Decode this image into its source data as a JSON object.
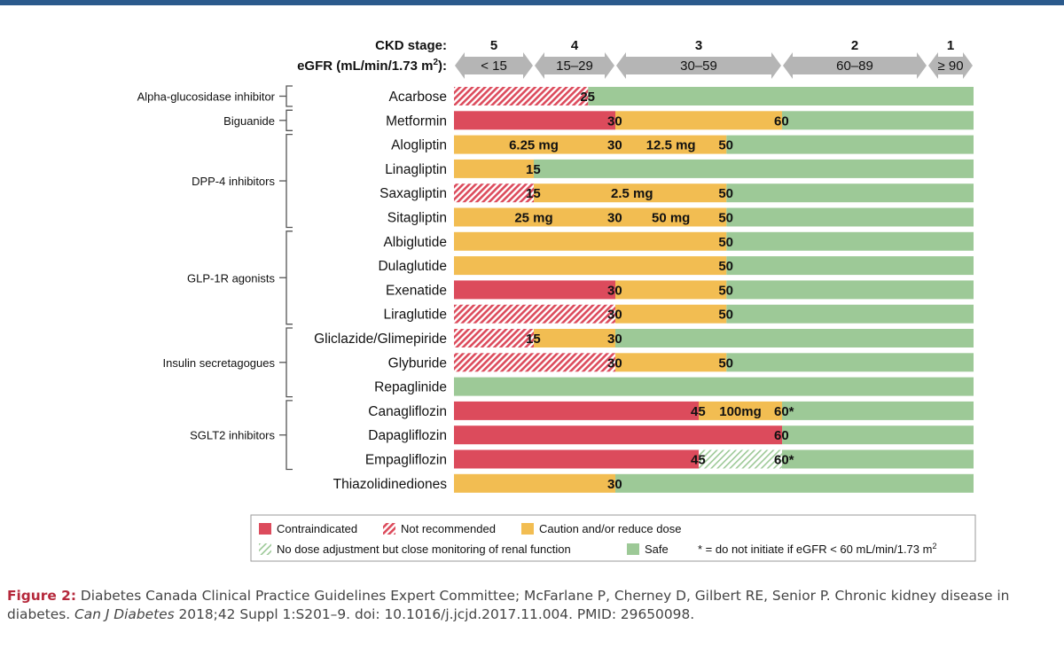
{
  "header": {
    "ckd_label": "CKD stage:",
    "egfr_label_main": "eGFR (mL/min/1.73 m",
    "egfr_label_sup": "2",
    "egfr_label_end": "):",
    "stages": [
      {
        "stage": "5",
        "range": "< 15"
      },
      {
        "stage": "4",
        "range": "15–29"
      },
      {
        "stage": "3",
        "range": "30–59"
      },
      {
        "stage": "2",
        "range": "60–89"
      },
      {
        "stage": "1",
        "range": "≥ 90"
      }
    ]
  },
  "chart_data": {
    "type": "bar",
    "orientation": "horizontal stacked segments",
    "x_quantity": "eGFR (mL/min/1.73 m2)",
    "x_breakpoints": [
      0,
      15,
      30,
      60,
      90,
      120
    ],
    "categories": {
      "contraindicated": "Contraindicated",
      "not_recommended": "Not recommended",
      "caution": "Caution and/or reduce dose",
      "monitor": "No dose adjustment but close monitoring of renal function",
      "safe": "Safe"
    },
    "footnote": "* = do not initiate if eGFR < 60 mL/min/1.73 m",
    "footnote_sup": "2",
    "groups": [
      {
        "name": "Alpha-glucosidase inhibitor",
        "first": 0,
        "last": 0
      },
      {
        "name": "Biguanide",
        "first": 1,
        "last": 1
      },
      {
        "name": "DPP-4 inhibitors",
        "first": 2,
        "last": 5
      },
      {
        "name": "GLP-1R agonists",
        "first": 6,
        "last": 9
      },
      {
        "name": "Insulin secretagogues",
        "first": 10,
        "last": 12
      },
      {
        "name": "SGLT2 inhibitors",
        "first": 13,
        "last": 15
      }
    ],
    "drugs": [
      {
        "name": "Acarbose",
        "segments": [
          {
            "from": 0,
            "to": 25,
            "cat": "not_recommended"
          },
          {
            "from": 25,
            "to": 120,
            "cat": "safe"
          }
        ],
        "labels": [
          {
            "at": 25,
            "text": "25"
          }
        ]
      },
      {
        "name": "Metformin",
        "segments": [
          {
            "from": 0,
            "to": 30,
            "cat": "contraindicated"
          },
          {
            "from": 30,
            "to": 60,
            "cat": "caution"
          },
          {
            "from": 60,
            "to": 120,
            "cat": "safe"
          }
        ],
        "labels": [
          {
            "at": 30,
            "text": "30"
          },
          {
            "at": 60,
            "text": "60"
          }
        ]
      },
      {
        "name": "Alogliptin",
        "segments": [
          {
            "from": 0,
            "to": 50,
            "cat": "caution"
          },
          {
            "from": 50,
            "to": 120,
            "cat": "safe"
          }
        ],
        "labels": [
          {
            "at": 30,
            "text": "30"
          },
          {
            "at": 50,
            "text": "50"
          }
        ],
        "notes": [
          {
            "at": 15,
            "text": "6.25 mg"
          },
          {
            "at": 40,
            "text": "12.5 mg"
          }
        ]
      },
      {
        "name": "Linagliptin",
        "segments": [
          {
            "from": 0,
            "to": 15,
            "cat": "caution"
          },
          {
            "from": 15,
            "to": 120,
            "cat": "safe"
          }
        ],
        "labels": [
          {
            "at": 15,
            "text": "15"
          }
        ]
      },
      {
        "name": "Saxagliptin",
        "segments": [
          {
            "from": 0,
            "to": 15,
            "cat": "not_recommended"
          },
          {
            "from": 15,
            "to": 50,
            "cat": "caution"
          },
          {
            "from": 50,
            "to": 120,
            "cat": "safe"
          }
        ],
        "labels": [
          {
            "at": 15,
            "text": "15"
          },
          {
            "at": 50,
            "text": "50"
          }
        ],
        "notes": [
          {
            "at": 33,
            "text": "2.5 mg"
          }
        ]
      },
      {
        "name": "Sitagliptin",
        "segments": [
          {
            "from": 0,
            "to": 50,
            "cat": "caution"
          },
          {
            "from": 50,
            "to": 120,
            "cat": "safe"
          }
        ],
        "labels": [
          {
            "at": 30,
            "text": "30"
          },
          {
            "at": 50,
            "text": "50"
          }
        ],
        "notes": [
          {
            "at": 15,
            "text": "25 mg"
          },
          {
            "at": 40,
            "text": "50 mg"
          }
        ]
      },
      {
        "name": "Albiglutide",
        "segments": [
          {
            "from": 0,
            "to": 50,
            "cat": "caution"
          },
          {
            "from": 50,
            "to": 120,
            "cat": "safe"
          }
        ],
        "labels": [
          {
            "at": 50,
            "text": "50"
          }
        ]
      },
      {
        "name": "Dulaglutide",
        "segments": [
          {
            "from": 0,
            "to": 50,
            "cat": "caution"
          },
          {
            "from": 50,
            "to": 120,
            "cat": "safe"
          }
        ],
        "labels": [
          {
            "at": 50,
            "text": "50"
          }
        ]
      },
      {
        "name": "Exenatide",
        "segments": [
          {
            "from": 0,
            "to": 30,
            "cat": "contraindicated"
          },
          {
            "from": 30,
            "to": 50,
            "cat": "caution"
          },
          {
            "from": 50,
            "to": 120,
            "cat": "safe"
          }
        ],
        "labels": [
          {
            "at": 30,
            "text": "30"
          },
          {
            "at": 50,
            "text": "50"
          }
        ]
      },
      {
        "name": "Liraglutide",
        "segments": [
          {
            "from": 0,
            "to": 30,
            "cat": "not_recommended"
          },
          {
            "from": 30,
            "to": 50,
            "cat": "caution"
          },
          {
            "from": 50,
            "to": 120,
            "cat": "safe"
          }
        ],
        "labels": [
          {
            "at": 30,
            "text": "30"
          },
          {
            "at": 50,
            "text": "50"
          }
        ]
      },
      {
        "name": "Gliclazide/Glimepiride",
        "segments": [
          {
            "from": 0,
            "to": 15,
            "cat": "not_recommended"
          },
          {
            "from": 15,
            "to": 30,
            "cat": "caution"
          },
          {
            "from": 30,
            "to": 120,
            "cat": "safe"
          }
        ],
        "labels": [
          {
            "at": 15,
            "text": "15"
          },
          {
            "at": 30,
            "text": "30"
          }
        ]
      },
      {
        "name": "Glyburide",
        "segments": [
          {
            "from": 0,
            "to": 30,
            "cat": "not_recommended"
          },
          {
            "from": 30,
            "to": 50,
            "cat": "caution"
          },
          {
            "from": 50,
            "to": 120,
            "cat": "safe"
          }
        ],
        "labels": [
          {
            "at": 30,
            "text": "30"
          },
          {
            "at": 50,
            "text": "50"
          }
        ]
      },
      {
        "name": "Repaglinide",
        "segments": [
          {
            "from": 0,
            "to": 120,
            "cat": "safe"
          }
        ],
        "labels": []
      },
      {
        "name": "Canagliflozin",
        "segments": [
          {
            "from": 0,
            "to": 45,
            "cat": "contraindicated"
          },
          {
            "from": 45,
            "to": 60,
            "cat": "caution"
          },
          {
            "from": 60,
            "to": 120,
            "cat": "safe"
          }
        ],
        "labels": [
          {
            "at": 45,
            "text": "45"
          },
          {
            "at": 60,
            "text": "60*"
          }
        ],
        "notes": [
          {
            "at": 52.5,
            "text": "100mg"
          }
        ]
      },
      {
        "name": "Dapagliflozin",
        "segments": [
          {
            "from": 0,
            "to": 60,
            "cat": "contraindicated"
          },
          {
            "from": 60,
            "to": 120,
            "cat": "safe"
          }
        ],
        "labels": [
          {
            "at": 60,
            "text": "60"
          }
        ]
      },
      {
        "name": "Empagliflozin",
        "segments": [
          {
            "from": 0,
            "to": 45,
            "cat": "contraindicated"
          },
          {
            "from": 45,
            "to": 60,
            "cat": "monitor"
          },
          {
            "from": 60,
            "to": 120,
            "cat": "safe"
          }
        ],
        "labels": [
          {
            "at": 45,
            "text": "45"
          },
          {
            "at": 60,
            "text": "60*"
          }
        ]
      },
      {
        "name": "Thiazolidinediones",
        "segments": [
          {
            "from": 0,
            "to": 30,
            "cat": "caution"
          },
          {
            "from": 30,
            "to": 120,
            "cat": "safe"
          }
        ],
        "labels": [
          {
            "at": 30,
            "text": "30"
          }
        ]
      }
    ]
  },
  "colors": {
    "contraindicated": "#dc4b5c",
    "caution": "#f2bd52",
    "safe": "#9dc997",
    "arrow": "#b5b5b5",
    "header_bar": "#2b5a8c",
    "caption_label": "#b5283b"
  },
  "caption": {
    "label": "Figure 2:",
    "text1": " Diabetes Canada Clinical Practice Guidelines Expert Committee; McFarlane P, Cherney D, Gilbert RE, Senior P. Chronic kidney disease in diabetes. ",
    "journal": "Can J Diabetes",
    "text2": " 2018;42 Suppl 1:S201–9. doi: 10.1016/j.jcjd.2017.11.004. PMID: 29650098."
  }
}
